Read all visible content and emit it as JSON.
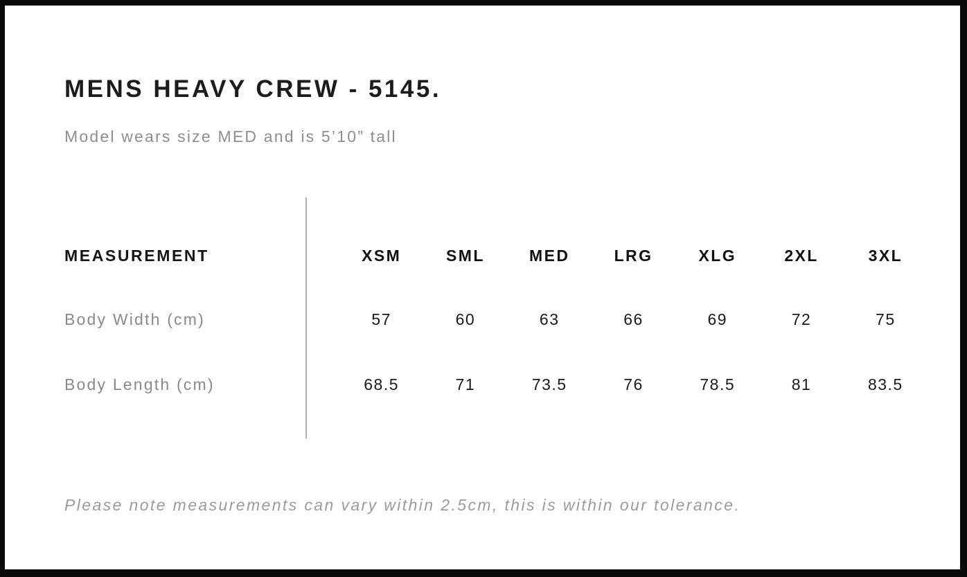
{
  "page": {
    "title": "MENS HEAVY CREW - 5145.",
    "subtitle": "Model wears size MED and is 5’10” tall",
    "note": "Please note measurements can vary within 2.5cm, this is within our tolerance."
  },
  "size_chart": {
    "measurement_header": "MEASUREMENT",
    "sizes": [
      "XSM",
      "SML",
      "MED",
      "LRG",
      "XLG",
      "2XL",
      "3XL"
    ],
    "rows": [
      {
        "label": "Body Width (cm)",
        "values": [
          "57",
          "60",
          "63",
          "66",
          "69",
          "72",
          "75"
        ]
      },
      {
        "label": "Body Length (cm)",
        "values": [
          "68.5",
          "71",
          "73.5",
          "76",
          "78.5",
          "81",
          "83.5"
        ]
      }
    ]
  },
  "colors": {
    "frame": "#0a0a0a",
    "page_background": "#ffffff",
    "text_primary": "#1a1a1a",
    "text_muted": "#8e8e8e",
    "note_text": "#9b9b9b",
    "divider": "#aeaeae"
  }
}
